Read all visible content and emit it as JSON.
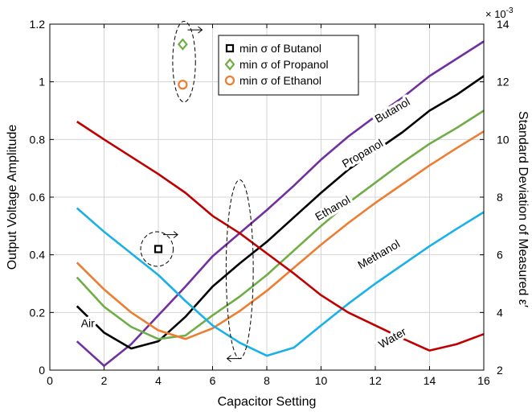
{
  "chart_data": {
    "type": "line",
    "xlabel": "Capacitor Setting",
    "ylabel": "Output Voltage Amplitude",
    "y2label": "Standard Deviation of Measured ε′",
    "y2_exponent": "× 10",
    "y2_exponent_power": "-3",
    "xlim": [
      0,
      16
    ],
    "ylim": [
      0,
      1.2
    ],
    "y2lim": [
      2,
      14
    ],
    "x_ticks": [
      "0",
      "2",
      "4",
      "6",
      "8",
      "10",
      "12",
      "14",
      "16"
    ],
    "y_ticks": [
      "0",
      "0.2",
      "0.4",
      "0.6",
      "0.8",
      "1",
      "1.2"
    ],
    "y2_ticks": [
      "2",
      "4",
      "6",
      "8",
      "10",
      "12",
      "14"
    ],
    "grid": true,
    "x": [
      1,
      2,
      3,
      4,
      5,
      6,
      7,
      8,
      9,
      10,
      11,
      12,
      13,
      14,
      15,
      16
    ],
    "series": [
      {
        "name": "Air",
        "color": "#7030a0",
        "values": [
          0.1,
          0.015,
          0.09,
          0.19,
          0.29,
          0.395,
          0.475,
          0.555,
          0.64,
          0.73,
          0.81,
          0.88,
          0.945,
          1.02,
          1.08,
          1.14
        ]
      },
      {
        "name": "Butanol",
        "color": "#000000",
        "values": [
          0.222,
          0.13,
          0.075,
          0.1,
          0.185,
          0.29,
          0.37,
          0.445,
          0.53,
          0.615,
          0.695,
          0.76,
          0.825,
          0.9,
          0.955,
          1.02
        ]
      },
      {
        "name": "Propanol",
        "color": "#70ad47",
        "values": [
          0.322,
          0.22,
          0.15,
          0.108,
          0.12,
          0.19,
          0.255,
          0.33,
          0.415,
          0.5,
          0.58,
          0.65,
          0.72,
          0.785,
          0.84,
          0.9
        ]
      },
      {
        "name": "Ethanol",
        "color": "#ed7d31",
        "values": [
          0.373,
          0.28,
          0.2,
          0.138,
          0.108,
          0.145,
          0.205,
          0.275,
          0.355,
          0.435,
          0.51,
          0.58,
          0.645,
          0.71,
          0.77,
          0.828
        ]
      },
      {
        "name": "Methanol",
        "color": "#1ab0e8",
        "values": [
          0.562,
          0.48,
          0.405,
          0.33,
          0.24,
          0.155,
          0.095,
          0.05,
          0.078,
          0.155,
          0.23,
          0.3,
          0.365,
          0.43,
          0.49,
          0.548
        ]
      },
      {
        "name": "Water",
        "color": "#c00000",
        "values": [
          0.862,
          0.8,
          0.74,
          0.68,
          0.615,
          0.535,
          0.475,
          0.405,
          0.335,
          0.26,
          0.2,
          0.155,
          0.11,
          0.068,
          0.09,
          0.125
        ]
      }
    ],
    "series_labels": [
      {
        "text": "Air",
        "x": 1.4,
        "y": 0.15
      },
      {
        "text": "Butanol",
        "x": 12.7,
        "y": 0.89
      },
      {
        "text": "Propanol",
        "x": 11.6,
        "y": 0.74
      },
      {
        "text": "Ethanol",
        "x": 10.5,
        "y": 0.55
      },
      {
        "text": "Methanol",
        "x": 12.2,
        "y": 0.39
      },
      {
        "text": "Water",
        "x": 12.7,
        "y": 0.1
      }
    ],
    "label_rotation": -30,
    "legend": {
      "position": "top-center",
      "entries": [
        {
          "marker": "square",
          "color": "#000000",
          "text": "min  σ  of Butanol"
        },
        {
          "marker": "diamond",
          "color": "#70ad47",
          "text": "min  σ  of Propanol"
        },
        {
          "marker": "circle",
          "color": "#ed7d31",
          "text": "min  σ  of Ethanol"
        }
      ]
    },
    "min_sigma_points": [
      {
        "name": "Butanol",
        "marker": "square",
        "color": "#000000",
        "x": 4,
        "y": 0.42
      },
      {
        "name": "Propanol",
        "marker": "diamond",
        "color": "#70ad47",
        "x": 4.9,
        "y": 1.13
      },
      {
        "name": "Ethanol",
        "marker": "circle",
        "color": "#ed7d31",
        "x": 4.9,
        "y": 0.99
      }
    ],
    "annotations": [
      {
        "type": "ellipse",
        "cx": 4.95,
        "cy": 1.07,
        "rx": 0.42,
        "ry": 0.14,
        "arrow": "right",
        "ax": 5.2,
        "ay": 1.18
      },
      {
        "type": "ellipse",
        "cx": 3.95,
        "cy": 0.42,
        "rx": 0.6,
        "ry": 0.06,
        "arrow": "right",
        "ax": 4.3,
        "ay": 0.47
      },
      {
        "type": "ellipse",
        "cx": 7.0,
        "cy": 0.35,
        "rx": 0.5,
        "ry": 0.31,
        "arrow": "left",
        "ax": 6.95,
        "ay": 0.04
      }
    ]
  }
}
